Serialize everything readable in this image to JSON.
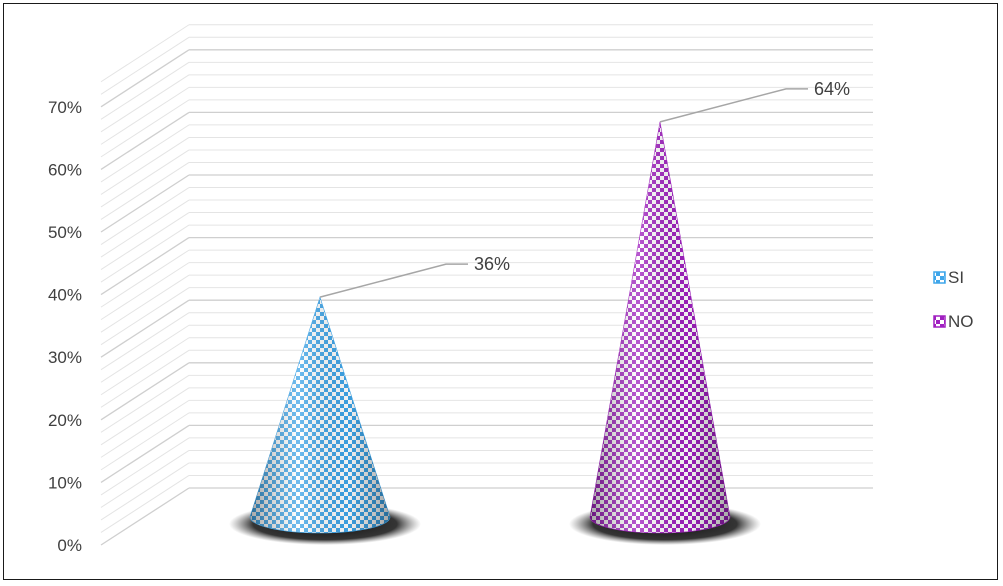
{
  "chart_data": {
    "type": "bar",
    "subtype": "3d-cone",
    "categories": [
      ""
    ],
    "series": [
      {
        "name": "SI",
        "values": [
          36
        ],
        "color": "#3fa6ea",
        "pattern": "checkerboard"
      },
      {
        "name": "NO",
        "values": [
          64
        ],
        "color": "#a020c0",
        "pattern": "checkerboard"
      }
    ],
    "data_labels": [
      "36%",
      "64%"
    ],
    "y_ticks": [
      "0%",
      "10%",
      "20%",
      "30%",
      "40%",
      "50%",
      "60%",
      "70%"
    ],
    "ylim": [
      0,
      70
    ],
    "grid": true,
    "legend": {
      "position": "right",
      "items": [
        {
          "label": "SI",
          "color": "#3fa6ea"
        },
        {
          "label": "NO",
          "color": "#a020c0"
        }
      ]
    }
  }
}
